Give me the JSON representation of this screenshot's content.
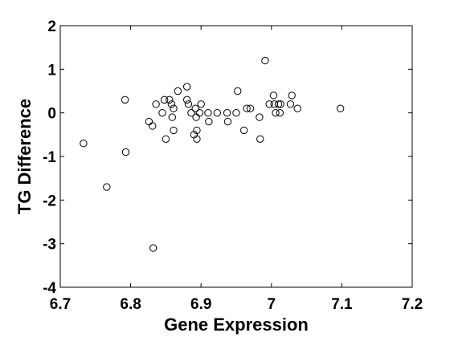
{
  "chart_data": {
    "type": "scatter",
    "title": "",
    "xlabel": "Gene Expression",
    "ylabel": "TG Difference",
    "xlim": [
      6.7,
      7.2
    ],
    "ylim": [
      -4,
      2
    ],
    "xticks": [
      "6.7",
      "6.8",
      "6.9",
      "7",
      "7.1",
      "7.2"
    ],
    "yticks": [
      "-4",
      "-3",
      "-2",
      "-1",
      "0",
      "1",
      "2"
    ],
    "grid": false,
    "legend": "none",
    "marker": "open-circle",
    "colors": {
      "marker": "#000000",
      "axes": "#000000",
      "background": "#ffffff"
    },
    "points": [
      {
        "x": 6.733,
        "y": -0.7
      },
      {
        "x": 6.766,
        "y": -1.7
      },
      {
        "x": 6.792,
        "y": 0.3
      },
      {
        "x": 6.793,
        "y": -0.9
      },
      {
        "x": 6.826,
        "y": -0.2
      },
      {
        "x": 6.831,
        "y": -0.3
      },
      {
        "x": 6.832,
        "y": -3.1
      },
      {
        "x": 6.836,
        "y": 0.2
      },
      {
        "x": 6.845,
        "y": 0.0
      },
      {
        "x": 6.848,
        "y": 0.3
      },
      {
        "x": 6.85,
        "y": -0.6
      },
      {
        "x": 6.855,
        "y": 0.3
      },
      {
        "x": 6.858,
        "y": 0.2
      },
      {
        "x": 6.859,
        "y": -0.1
      },
      {
        "x": 6.861,
        "y": 0.1
      },
      {
        "x": 6.861,
        "y": -0.4
      },
      {
        "x": 6.867,
        "y": 0.5
      },
      {
        "x": 6.88,
        "y": 0.6
      },
      {
        "x": 6.88,
        "y": 0.3
      },
      {
        "x": 6.882,
        "y": 0.2
      },
      {
        "x": 6.886,
        "y": 0.0
      },
      {
        "x": 6.89,
        "y": -0.5
      },
      {
        "x": 6.892,
        "y": 0.1
      },
      {
        "x": 6.893,
        "y": -0.1
      },
      {
        "x": 6.894,
        "y": -0.6
      },
      {
        "x": 6.894,
        "y": -0.4
      },
      {
        "x": 6.898,
        "y": 0.0
      },
      {
        "x": 6.9,
        "y": 0.2
      },
      {
        "x": 6.91,
        "y": 0.0
      },
      {
        "x": 6.911,
        "y": -0.2
      },
      {
        "x": 6.923,
        "y": 0.0
      },
      {
        "x": 6.937,
        "y": 0.0
      },
      {
        "x": 6.938,
        "y": -0.2
      },
      {
        "x": 6.95,
        "y": 0.0
      },
      {
        "x": 6.952,
        "y": 0.5
      },
      {
        "x": 6.961,
        "y": -0.4
      },
      {
        "x": 6.965,
        "y": 0.1
      },
      {
        "x": 6.97,
        "y": 0.1
      },
      {
        "x": 6.983,
        "y": -0.1
      },
      {
        "x": 6.984,
        "y": -0.6
      },
      {
        "x": 6.991,
        "y": 1.2
      },
      {
        "x": 6.997,
        "y": 0.2
      },
      {
        "x": 7.003,
        "y": 0.4
      },
      {
        "x": 7.004,
        "y": 0.2
      },
      {
        "x": 7.006,
        "y": 0.0
      },
      {
        "x": 7.01,
        "y": 0.2
      },
      {
        "x": 7.012,
        "y": 0.0
      },
      {
        "x": 7.013,
        "y": 0.2
      },
      {
        "x": 7.027,
        "y": 0.2
      },
      {
        "x": 7.029,
        "y": 0.4
      },
      {
        "x": 7.037,
        "y": 0.1
      },
      {
        "x": 7.098,
        "y": 0.1
      }
    ]
  }
}
